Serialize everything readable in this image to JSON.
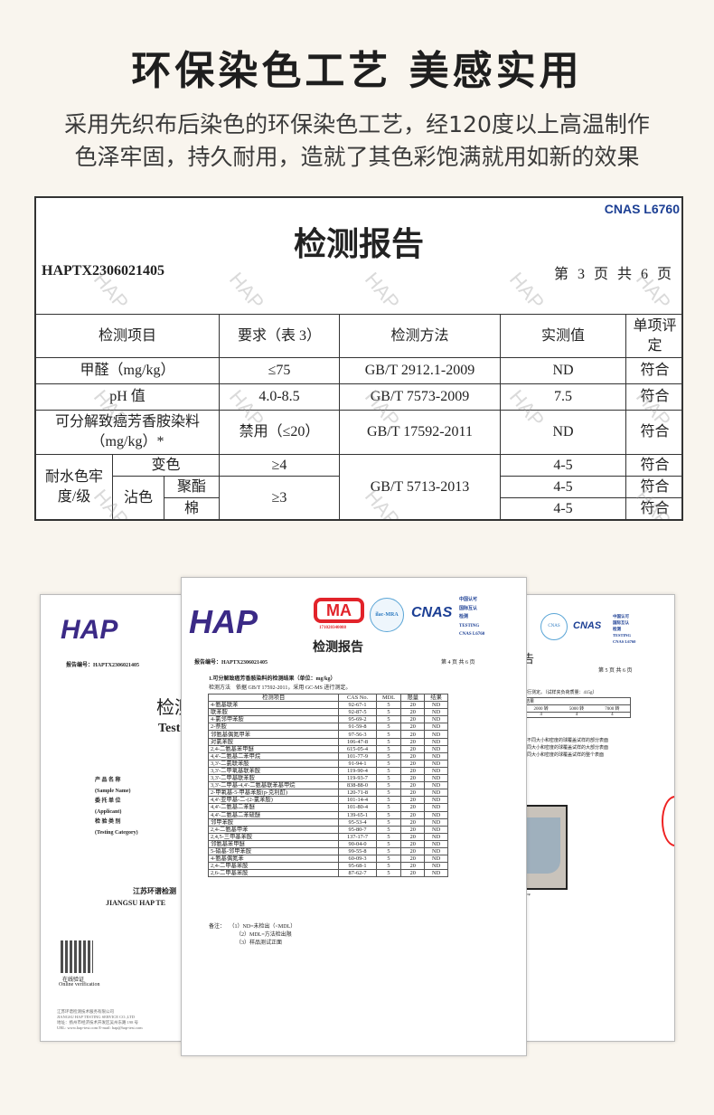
{
  "headline": "环保染色工艺 美感实用",
  "subtitle_lines": [
    "采用先织布后染色的环保染色工艺，经120度以上高温制作",
    "色泽牢固，持久耐用，造就了其色彩饱满就用如新的效果"
  ],
  "report": {
    "cnas": "CNAS L6760",
    "title": "检测报告",
    "report_no": "HAPTX2306021405",
    "page": "第 3 页 共 6 页",
    "headers": [
      "检测项目",
      "要求（表 3）",
      "检测方法",
      "实测值",
      "单项评定"
    ],
    "rows": [
      {
        "item": "甲醛（mg/kg）",
        "req": "≤75",
        "method": "GB/T 2912.1-2009",
        "value": "ND",
        "verdict": "符合"
      },
      {
        "item": "pH 值",
        "req": "4.0-8.5",
        "method": "GB/T 7573-2009",
        "value": "7.5",
        "verdict": "符合"
      },
      {
        "item": "可分解致癌芳香胺染料（mg/kg）*",
        "req": "禁用（≤20）",
        "method": "GB/T 17592-2011",
        "value": "ND",
        "verdict": "符合"
      }
    ],
    "colorfast": {
      "item": "耐水色牢度/级",
      "change": "变色",
      "stain": "沾色",
      "polyester": "聚酯",
      "cotton": "棉",
      "req_change": "≥4",
      "req_stain": "≥3",
      "method": "GB/T 5713-2013",
      "values": [
        "4-5",
        "4-5",
        "4-5"
      ],
      "verdicts": [
        "符合",
        "符合",
        "符合"
      ]
    },
    "watermark": "HAP"
  },
  "doc_left": {
    "logo": "HAP",
    "report_no": "报告编号：HAPTX2306021405",
    "title_cn": "检测",
    "title_en": "Test",
    "fields": [
      "产 品 名 称",
      "(Sample Name)",
      "委 托 单 位",
      "(Applicant)",
      "检 验 类 别",
      "(Testing Category)"
    ],
    "company_cn": "江苏环谱检测",
    "company_en": "JIANGSU HAP TE",
    "qr_label_cn": "在线验证",
    "qr_label_en": "Online verification",
    "footer": [
      "江苏环谱检测技术服务有限公司",
      "JIANGSU HAP TESTING SERVICE CO.,LTD",
      "地址：扬州市经济技术开发区吴州东路 198 号",
      "URL: www.hap-test.com    E-mail: hap@hap-test.com"
    ]
  },
  "doc_mid": {
    "logo": "HAP",
    "cma": "MA",
    "cma_no": "171020340088",
    "ilac": "ilac-MRA",
    "cnas": "CNAS",
    "cert_lines": [
      "中国认可",
      "国际互认",
      "检测",
      "TESTING",
      "CNAS L6760"
    ],
    "title": "检测报告",
    "report_no": "报告编号：HAPTX2306021405",
    "page": "第 4 页 共 6 页",
    "section": "1.可分解致癌芳香胺染料的检测结果（单位：mg/kg）",
    "method": "检测方法    依据 GB/T 17592-2011，采用 GC-MS 进行测定。",
    "headers": [
      "检测项目",
      "CAS No.",
      "MDL",
      "限量",
      "结果"
    ],
    "rows": [
      [
        "4-氨基联苯",
        "92-67-1",
        "5",
        "20",
        "ND"
      ],
      [
        "联苯胺",
        "92-87-5",
        "5",
        "20",
        "ND"
      ],
      [
        "4-氯邻甲苯胺",
        "95-69-2",
        "5",
        "20",
        "ND"
      ],
      [
        "2-萘胺",
        "91-59-8",
        "5",
        "20",
        "ND"
      ],
      [
        "邻氨基偶氮甲苯",
        "97-56-3",
        "5",
        "20",
        "ND"
      ],
      [
        "对氯苯胺",
        "106-47-8",
        "5",
        "20",
        "ND"
      ],
      [
        "2,4-二氨基苯甲醚",
        "615-05-4",
        "5",
        "20",
        "ND"
      ],
      [
        "4,4'-二氨基二苯甲烷",
        "101-77-9",
        "5",
        "20",
        "ND"
      ],
      [
        "3,3'-二氯联苯胺",
        "91-94-1",
        "5",
        "20",
        "ND"
      ],
      [
        "3,3'-二甲氧基联苯胺",
        "119-90-4",
        "5",
        "20",
        "ND"
      ],
      [
        "3,3'-二甲基联苯胺",
        "119-93-7",
        "5",
        "20",
        "ND"
      ],
      [
        "3,3'-二甲基-4,4'-二氨基联苯基甲烷",
        "838-88-0",
        "5",
        "20",
        "ND"
      ],
      [
        "2-甲氧基-5-甲基苯胺(p-克利酊)",
        "120-71-8",
        "5",
        "20",
        "ND"
      ],
      [
        "4,4'-亚甲基-二-(2-氯苯胺)",
        "101-14-4",
        "5",
        "20",
        "ND"
      ],
      [
        "4,4'-二氨基二苯醚",
        "101-80-4",
        "5",
        "20",
        "ND"
      ],
      [
        "4,4'-二氨基二苯硫醚",
        "139-65-1",
        "5",
        "20",
        "ND"
      ],
      [
        "邻甲苯胺",
        "95-53-4",
        "5",
        "20",
        "ND"
      ],
      [
        "2,4-二氨基甲苯",
        "95-80-7",
        "5",
        "20",
        "ND"
      ],
      [
        "2,4,5-三甲基苯胺",
        "137-17-7",
        "5",
        "20",
        "ND"
      ],
      [
        "邻氨基苯甲醚",
        "90-04-0",
        "5",
        "20",
        "ND"
      ],
      [
        "5-硝基-邻甲苯胺",
        "99-55-8",
        "5",
        "20",
        "ND"
      ],
      [
        "4-氨基偶氮苯",
        "60-09-3",
        "5",
        "20",
        "ND"
      ],
      [
        "2,4-二甲基苯胺",
        "95-68-1",
        "5",
        "20",
        "ND"
      ],
      [
        "2,6-二甲基苯胺",
        "87-62-7",
        "5",
        "20",
        "ND"
      ]
    ],
    "notes": [
      "备注：   （1）ND=未检出（<MDL）",
      "（2）MDL=方法检出限",
      "（3）样品测试正面"
    ]
  },
  "doc_right": {
    "cnas": "CNAS",
    "cert_lines": [
      "中国认可",
      "国际互认",
      "检测",
      "TESTING",
      "CNAS L6760"
    ],
    "title_fragment": "告",
    "page": "第 5 页 共 6 页",
    "method_fragment": "进行测定。（试样夹负荷质量：415g）",
    "pilling_label": "结果",
    "turns": [
      "2000 转",
      "5000 转",
      "7000 转"
    ],
    "grades": [
      "4",
      "4",
      "4"
    ],
    "desc": [
      "，不同大小和密度的球覆盖试样的部分表面",
      "不同大小和密度的球覆盖试样的大部分表面",
      "不同大小和密度的球覆盖试样的整个表面"
    ],
    "end": "***"
  }
}
